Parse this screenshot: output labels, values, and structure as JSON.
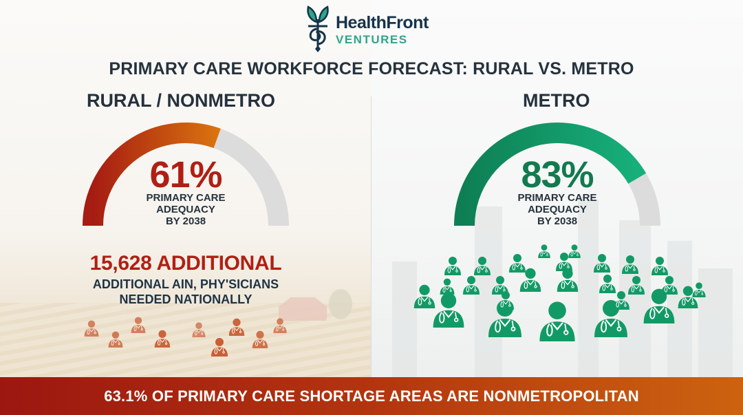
{
  "brand": {
    "name": "HealthFront",
    "sub": "VENTURES",
    "colors": {
      "navy": "#16334a",
      "teal": "#2ea58a"
    }
  },
  "title": "PRIMARY CARE WORKFORCE FORECAST: RURAL VS. METRO",
  "rural": {
    "heading": "RURAL / NONMETRO",
    "gauge": {
      "value": 61,
      "display": "61%",
      "label_lines": [
        "PRIMARY CARE",
        "ADEQUACY",
        "BY 2038"
      ],
      "color_start": "#a61c12",
      "color_end": "#d9730f",
      "track_color": "#dcdcdc"
    },
    "stat": {
      "headline": "15,628 ADDITIONAL",
      "sub_lines": [
        "ADDITIONAL AIN, PHY'SICIANS",
        "NEEDED NATIONALLY"
      ]
    },
    "icon": "doctor-icon",
    "icon_color": "#c8582e",
    "icon_count": 9
  },
  "metro": {
    "heading": "METRO",
    "gauge": {
      "value": 83,
      "display": "83%",
      "label_lines": [
        "PRIMARY CARE",
        "ADEQUACY",
        "BY 2038"
      ],
      "color_start": "#0e7f55",
      "color_end": "#17b07a",
      "track_color": "#dcdcdc"
    },
    "icon": "doctor-icon",
    "icon_color": "#129a66",
    "icon_count": 27
  },
  "banner": {
    "text": "63.1% OF PRIMARY CARE SHORTAGE AREAS ARE NONMETROPOLITAN"
  },
  "chart_data": {
    "type": "gauge",
    "title": "PRIMARY CARE WORKFORCE FORECAST: RURAL VS. METRO",
    "categories": [
      "RURAL / NONMETRO",
      "METRO"
    ],
    "values": [
      61,
      83
    ],
    "unit": "%",
    "label": "PRIMARY CARE ADEQUACY BY 2038",
    "ylim": [
      0,
      100
    ],
    "annotations": [
      "15,628 ADDITIONAL",
      "ADDITIONAL AIN, PHY'SICIANS NEEDED NATIONALLY",
      "63.1% OF PRIMARY CARE SHORTAGE AREAS ARE NONMETROPOLITAN"
    ]
  }
}
